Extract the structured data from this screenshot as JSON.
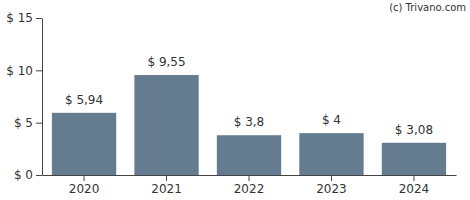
{
  "chart_data": {
    "type": "bar",
    "categories": [
      "2020",
      "2021",
      "2022",
      "2023",
      "2024"
    ],
    "values": [
      5.94,
      9.55,
      3.8,
      4,
      3.08
    ],
    "value_labels": [
      "$ 5,94",
      "$ 9,55",
      "$ 3,8",
      "$ 4",
      "$ 3,08"
    ],
    "data_labels": true,
    "color": "#657c90",
    "ylim": [
      0,
      15
    ],
    "yticks": [
      {
        "value": 0,
        "label": "$ 0"
      },
      {
        "value": 5,
        "label": "$ 5"
      },
      {
        "value": 10,
        "label": "$ 10"
      },
      {
        "value": 15,
        "label": "$ 15"
      }
    ],
    "grid": false,
    "annotations": [
      "(c) Trivano.com"
    ]
  }
}
